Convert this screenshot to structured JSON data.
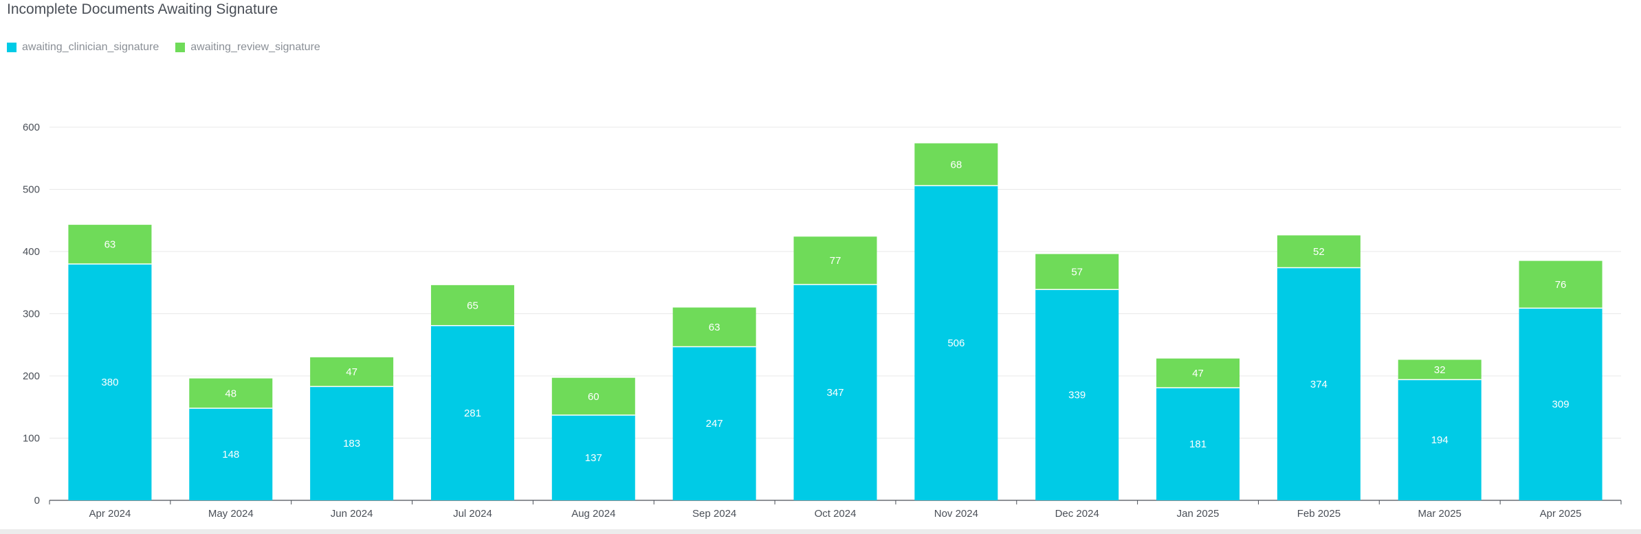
{
  "chart_data": {
    "type": "bar",
    "stacked": true,
    "title": "Incomplete Documents Awaiting Signature",
    "xlabel": "",
    "ylabel": "",
    "ylim": [
      0,
      600
    ],
    "yticks": [
      0,
      100,
      200,
      300,
      400,
      500,
      600
    ],
    "grid": true,
    "legend_position": "top-left",
    "categories": [
      "Apr 2024",
      "May 2024",
      "Jun 2024",
      "Jul 2024",
      "Aug 2024",
      "Sep 2024",
      "Oct 2024",
      "Nov 2024",
      "Dec 2024",
      "Jan 2025",
      "Feb 2025",
      "Mar 2025",
      "Apr 2025"
    ],
    "series": [
      {
        "name": "awaiting_clinician_signature",
        "color": "#00cbe6",
        "values": [
          380,
          148,
          183,
          281,
          137,
          247,
          347,
          506,
          339,
          181,
          374,
          194,
          309
        ]
      },
      {
        "name": "awaiting_review_signature",
        "color": "#6fdb59",
        "values": [
          63,
          48,
          47,
          65,
          60,
          63,
          77,
          68,
          57,
          47,
          52,
          32,
          76
        ]
      }
    ]
  },
  "colors": {
    "axis": "#4a4f57",
    "grid": "#e8e8e8"
  }
}
